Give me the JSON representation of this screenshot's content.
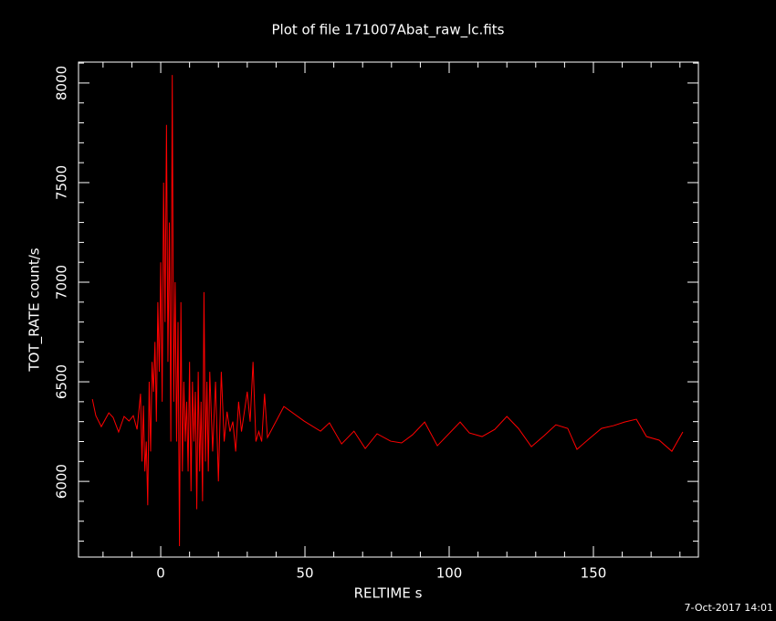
{
  "chart_data": {
    "type": "line",
    "title": "Plot of file 171007Abat_raw_lc.fits",
    "xlabel": "RELTIME  s",
    "ylabel": "TOT_RATE  count/s",
    "footer": "7-Oct-2017 14:01",
    "xlim": [
      -28.5,
      186.4
    ],
    "ylim": [
      5620,
      8105
    ],
    "xticks": [
      0,
      50,
      100,
      150
    ],
    "yticks": [
      6000,
      6500,
      7000,
      7500,
      8000
    ],
    "xminorticks": [
      -20,
      -10,
      10,
      20,
      30,
      40,
      60,
      70,
      80,
      90,
      110,
      120,
      130,
      140,
      160,
      170,
      180
    ],
    "yminorticks": [
      5700,
      5800,
      5900,
      6100,
      6200,
      6300,
      6400,
      6600,
      6700,
      6800,
      6900,
      7100,
      7200,
      7300,
      7400,
      7600,
      7700,
      7800,
      7900,
      8100
    ],
    "series": [
      {
        "color": "#ff0000",
        "x": [
          -23.7,
          -22.5,
          -20.6,
          -18,
          -16.5,
          -14.6,
          -12.7,
          -11,
          -9.5,
          -8.2,
          -7,
          -6.5,
          -6,
          -5.5,
          -5,
          -4.5,
          -4,
          -3.5,
          -3,
          -2.5,
          -2,
          -1.5,
          -1,
          -0.5,
          0,
          0.5,
          1,
          1.5,
          2,
          2.5,
          3,
          3.5,
          4,
          4.5,
          5,
          5.5,
          6,
          6.5,
          7,
          7.5,
          8,
          8.5,
          9,
          9.5,
          10,
          10.5,
          11,
          11.5,
          12,
          12.5,
          13,
          13.5,
          14,
          14.5,
          15,
          15.5,
          16,
          16.5,
          17,
          18,
          19,
          20,
          21,
          22,
          23,
          24,
          25,
          26,
          27,
          28,
          29,
          30,
          31,
          32,
          33,
          34,
          35,
          36,
          37,
          42.7,
          49.7,
          55.4,
          58.5,
          62.7,
          67,
          70.9,
          75,
          79.7,
          83.5,
          87.3,
          91.5,
          95.9,
          103.8,
          107,
          111.4,
          115.8,
          120,
          124,
          128.5,
          132.9,
          137,
          141.1,
          144.3,
          148.7,
          152.8,
          157,
          160.8,
          164.9,
          168.4,
          172.8,
          177.2,
          181
        ],
        "values": [
          6413,
          6330,
          6275,
          6344,
          6321,
          6248,
          6326,
          6303,
          6330,
          6261,
          6440,
          6100,
          6380,
          6050,
          6200,
          5880,
          6500,
          6150,
          6600,
          6450,
          6700,
          6300,
          6900,
          6550,
          7100,
          6400,
          7500,
          6800,
          7790,
          6600,
          7300,
          6200,
          8040,
          6400,
          7000,
          6200,
          6800,
          5675,
          6900,
          6050,
          6500,
          6200,
          6400,
          6050,
          6600,
          5950,
          6500,
          6200,
          6450,
          5860,
          6550,
          6050,
          6400,
          5900,
          6950,
          6100,
          6500,
          6050,
          6550,
          6150,
          6500,
          6000,
          6550,
          6200,
          6350,
          6250,
          6300,
          6150,
          6400,
          6250,
          6350,
          6450,
          6300,
          6600,
          6200,
          6250,
          6200,
          6440,
          6220,
          6376,
          6303,
          6252,
          6294,
          6188,
          6252,
          6165,
          6239,
          6202,
          6193,
          6234,
          6298,
          6179,
          6298,
          6243,
          6225,
          6261,
          6326,
          6266,
          6174,
          6229,
          6284,
          6266,
          6161,
          6216,
          6266,
          6280,
          6298,
          6312,
          6225,
          6207,
          6151,
          6248
        ]
      }
    ]
  }
}
